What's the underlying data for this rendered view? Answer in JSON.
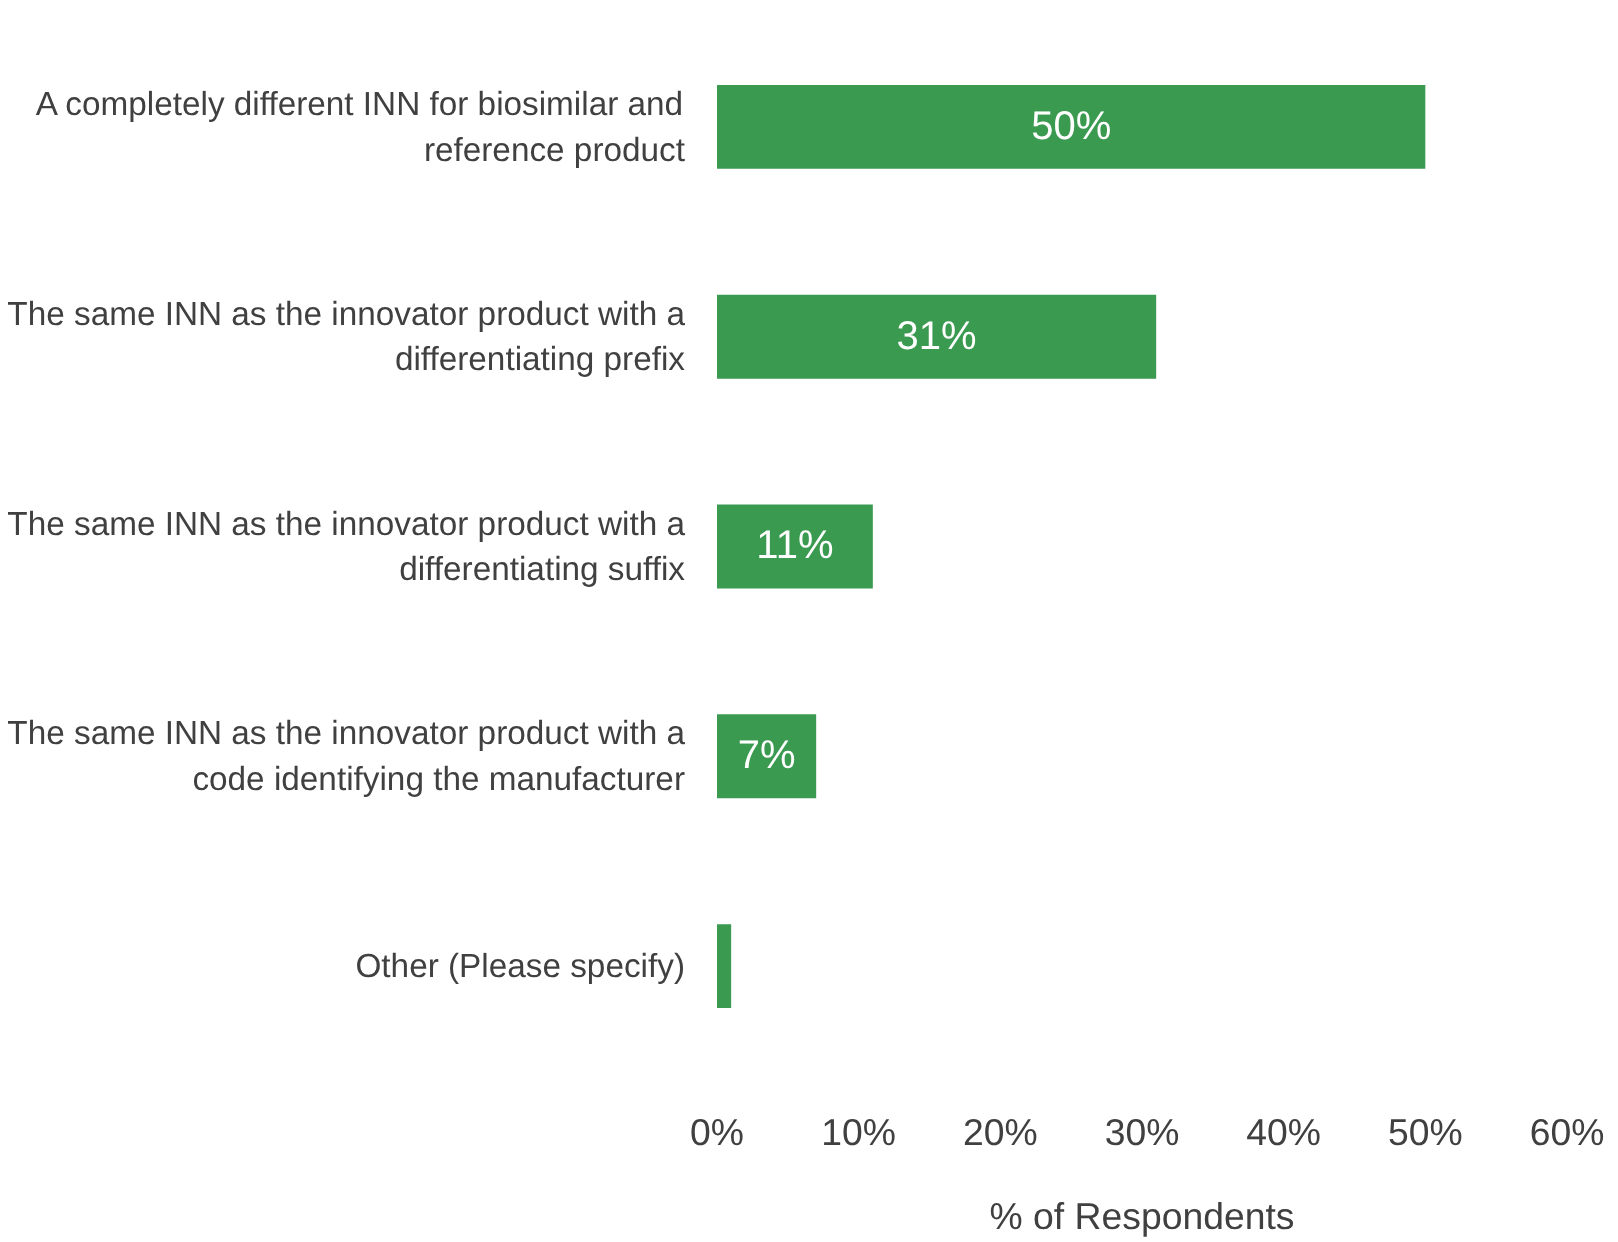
{
  "chart_data": {
    "type": "bar",
    "orientation": "horizontal",
    "xlabel": "% of Respondents",
    "categories": [
      "A completely different INN for biosimilar and reference product",
      "The same INN as the innovator product with a differentiating prefix",
      "The same INN as the innovator product with a differentiating suffix",
      "The same INN as the innovator product with a code identifying the manufacturer",
      "Other (Please specify)"
    ],
    "values": [
      50,
      31,
      11,
      7,
      1
    ],
    "color": "#3a9a50",
    "value_labels": [
      "50%",
      "31%",
      "11%",
      "7%",
      null
    ],
    "xlim": [
      0,
      60
    ],
    "xticks": [
      {
        "value": 0,
        "label": "0%"
      },
      {
        "value": 10,
        "label": "10%"
      },
      {
        "value": 20,
        "label": "20%"
      },
      {
        "value": 30,
        "label": "30%"
      },
      {
        "value": 40,
        "label": "40%"
      },
      {
        "value": 50,
        "label": "50%"
      },
      {
        "value": 60,
        "label": "60%"
      }
    ],
    "grid": false
  }
}
